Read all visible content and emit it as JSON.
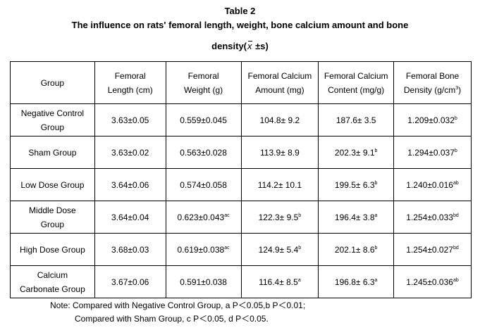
{
  "title": {
    "line1": "Table 2",
    "line2": "The influence on rats' femoral length, weight, bone calcium amount and bone",
    "line3_prefix": "density(",
    "line3_symbol": "x",
    "line3_suffix": " ±s)"
  },
  "table": {
    "headers": [
      {
        "lines": [
          "Group"
        ]
      },
      {
        "lines": [
          "Femoral",
          "Length (cm)"
        ]
      },
      {
        "lines": [
          "Femoral",
          "Weight (g)"
        ]
      },
      {
        "lines": [
          "Femoral Calcium",
          "Amount (mg)"
        ]
      },
      {
        "lines": [
          "Femoral Calcium",
          "Content (mg/g)"
        ]
      },
      {
        "lines": [
          "Femoral Bone",
          "Density (g/cm",
          ")"
        ],
        "sup": "3"
      }
    ],
    "rows": [
      {
        "group_lines": [
          "Negative Control",
          "Group"
        ],
        "cells": [
          {
            "v": "3.63±0.05",
            "s": ""
          },
          {
            "v": "0.559±0.045",
            "s": ""
          },
          {
            "v": "104.8± 9.2",
            "s": ""
          },
          {
            "v": "187.6± 3.5",
            "s": ""
          },
          {
            "v": "1.209±0.032",
            "s": "b"
          }
        ]
      },
      {
        "group_lines": [
          "Sham Group"
        ],
        "cells": [
          {
            "v": "3.63±0.02",
            "s": ""
          },
          {
            "v": "0.563±0.028",
            "s": ""
          },
          {
            "v": "113.9± 8.9",
            "s": ""
          },
          {
            "v": "202.3± 9.1",
            "s": "b"
          },
          {
            "v": "1.294±0.037",
            "s": "b"
          }
        ]
      },
      {
        "group_lines": [
          "Low Dose Group"
        ],
        "cells": [
          {
            "v": "3.64±0.06",
            "s": ""
          },
          {
            "v": "0.574±0.058",
            "s": ""
          },
          {
            "v": "114.2± 10.1",
            "s": ""
          },
          {
            "v": "199.5± 6.3",
            "s": "b"
          },
          {
            "v": "1.240±0.016",
            "s": "ab"
          }
        ]
      },
      {
        "group_lines": [
          "Middle Dose",
          "Group"
        ],
        "cells": [
          {
            "v": "3.64±0.04",
            "s": ""
          },
          {
            "v": "0.623±0.043",
            "s": "ac"
          },
          {
            "v": "122.3± 9.5",
            "s": "b"
          },
          {
            "v": "196.4± 3.8",
            "s": "a"
          },
          {
            "v": "1.254±0.033",
            "s": "bd"
          }
        ]
      },
      {
        "group_lines": [
          "High Dose Group"
        ],
        "cells": [
          {
            "v": "3.68±0.03",
            "s": ""
          },
          {
            "v": "0.619±0.038",
            "s": "ac"
          },
          {
            "v": "124.9± 5.4",
            "s": "b"
          },
          {
            "v": "202.1± 8.6",
            "s": "b"
          },
          {
            "v": "1.254±0.027",
            "s": "bd"
          }
        ]
      },
      {
        "group_lines": [
          "Calcium",
          "Carbonate Group"
        ],
        "cells": [
          {
            "v": "3.67±0.06",
            "s": ""
          },
          {
            "v": "0.591±0.038",
            "s": ""
          },
          {
            "v": "116.4± 8.5",
            "s": "a"
          },
          {
            "v": "196.8± 6.3",
            "s": "a"
          },
          {
            "v": "1.245±0.036",
            "s": "ab"
          }
        ]
      }
    ]
  },
  "note": {
    "line1": "Note: Compared with Negative Control Group, a P＜0.05,b P＜0.01;",
    "line2": "Compared with Sham Group, c P＜0.05, d P＜0.05."
  }
}
